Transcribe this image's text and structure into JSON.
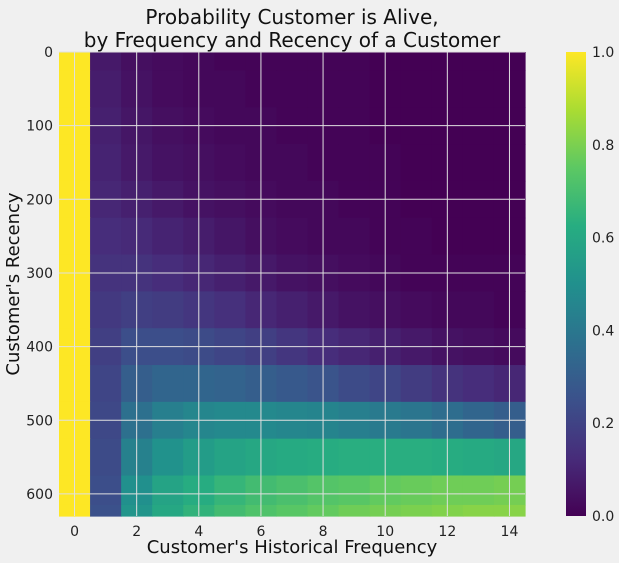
{
  "chart_data": {
    "type": "heatmap",
    "title": "Probability Customer is Alive,\nby Frequency and Recency of a Customer",
    "title_lines": [
      "Probability Customer is Alive,",
      "by Frequency and Recency of a Customer"
    ],
    "xlabel": "Customer's Historical Frequency",
    "ylabel": "Customer's Recency",
    "x_range": [
      -0.5,
      14.5
    ],
    "y_range": [
      0,
      630
    ],
    "y_inverted": true,
    "x_ticks": [
      0,
      2,
      4,
      6,
      8,
      10,
      12,
      14
    ],
    "y_ticks": [
      0,
      100,
      200,
      300,
      400,
      500,
      600
    ],
    "grid": true,
    "colormap": "viridis",
    "colorbar": {
      "range": [
        0.0,
        1.0
      ],
      "ticks": [
        0.0,
        0.2,
        0.4,
        0.6,
        0.8,
        1.0
      ],
      "tick_labels": [
        "0.0",
        "0.2",
        "0.4",
        "0.6",
        "0.8",
        "1.0"
      ]
    },
    "frequency": [
      0,
      1,
      2,
      3,
      4,
      5,
      6,
      7,
      8,
      9,
      10,
      11,
      12,
      13,
      14
    ],
    "recency": [
      0,
      50,
      100,
      150,
      200,
      250,
      300,
      350,
      400,
      450,
      500,
      550,
      600,
      630
    ],
    "values": [
      [
        1.0,
        0.07,
        0.04,
        0.03,
        0.02,
        0.01,
        0.01,
        0.01,
        0.01,
        0.01,
        0.0,
        0.0,
        0.0,
        0.0,
        0.0
      ],
      [
        1.0,
        0.08,
        0.05,
        0.03,
        0.02,
        0.02,
        0.01,
        0.01,
        0.01,
        0.01,
        0.0,
        0.0,
        0.0,
        0.0,
        0.0
      ],
      [
        1.0,
        0.09,
        0.06,
        0.04,
        0.03,
        0.02,
        0.02,
        0.01,
        0.01,
        0.01,
        0.0,
        0.0,
        0.0,
        0.0,
        0.0
      ],
      [
        1.0,
        0.1,
        0.07,
        0.05,
        0.04,
        0.03,
        0.02,
        0.02,
        0.01,
        0.01,
        0.01,
        0.0,
        0.0,
        0.0,
        0.0
      ],
      [
        1.0,
        0.11,
        0.09,
        0.07,
        0.05,
        0.04,
        0.03,
        0.02,
        0.02,
        0.01,
        0.01,
        0.0,
        0.0,
        0.0,
        0.0
      ],
      [
        1.0,
        0.13,
        0.12,
        0.1,
        0.08,
        0.06,
        0.04,
        0.03,
        0.02,
        0.02,
        0.01,
        0.01,
        0.0,
        0.0,
        0.0
      ],
      [
        1.0,
        0.15,
        0.15,
        0.13,
        0.11,
        0.09,
        0.07,
        0.05,
        0.04,
        0.03,
        0.02,
        0.01,
        0.01,
        0.01,
        0.01
      ],
      [
        1.0,
        0.17,
        0.19,
        0.18,
        0.16,
        0.14,
        0.11,
        0.09,
        0.07,
        0.05,
        0.04,
        0.03,
        0.02,
        0.02,
        0.01
      ],
      [
        1.0,
        0.19,
        0.24,
        0.24,
        0.23,
        0.21,
        0.19,
        0.16,
        0.13,
        0.11,
        0.09,
        0.07,
        0.05,
        0.04,
        0.03
      ],
      [
        1.0,
        0.21,
        0.3,
        0.33,
        0.33,
        0.32,
        0.3,
        0.28,
        0.26,
        0.23,
        0.21,
        0.18,
        0.15,
        0.13,
        0.11
      ],
      [
        1.0,
        0.22,
        0.37,
        0.43,
        0.46,
        0.47,
        0.47,
        0.46,
        0.45,
        0.43,
        0.41,
        0.39,
        0.36,
        0.33,
        0.3
      ],
      [
        1.0,
        0.23,
        0.44,
        0.51,
        0.55,
        0.58,
        0.6,
        0.61,
        0.62,
        0.63,
        0.63,
        0.63,
        0.62,
        0.61,
        0.6
      ],
      [
        1.0,
        0.24,
        0.5,
        0.58,
        0.62,
        0.66,
        0.69,
        0.71,
        0.73,
        0.74,
        0.76,
        0.77,
        0.78,
        0.78,
        0.79
      ],
      [
        1.0,
        0.25,
        0.52,
        0.6,
        0.65,
        0.69,
        0.72,
        0.74,
        0.76,
        0.78,
        0.79,
        0.8,
        0.81,
        0.82,
        0.82
      ]
    ]
  }
}
